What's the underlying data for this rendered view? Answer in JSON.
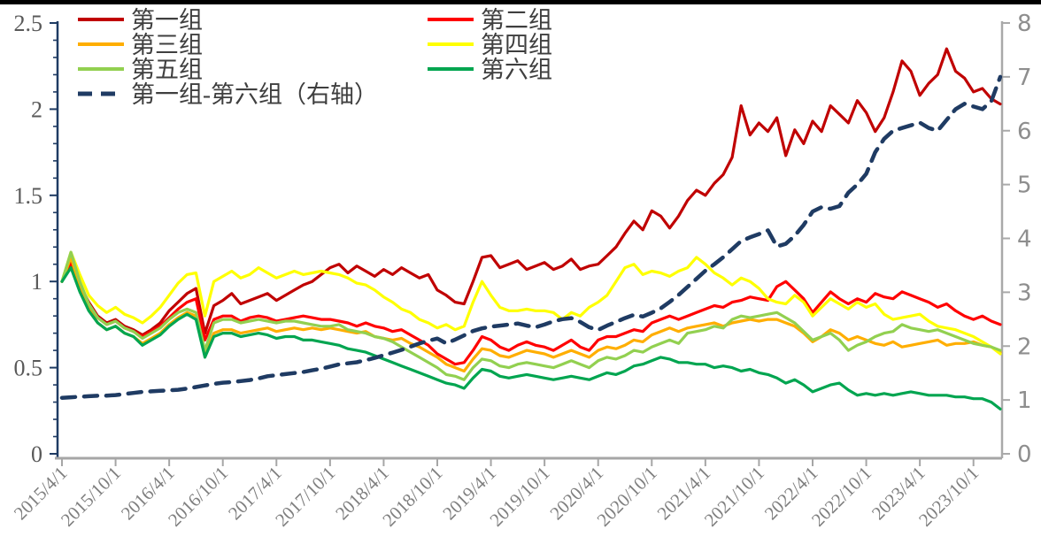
{
  "page": {
    "background": "#ffffff",
    "top_border_color": "#000000"
  },
  "chart_data": {
    "type": "line",
    "title": "",
    "xlabel": "",
    "ylabel_left": "",
    "ylabel_right": "",
    "grid": false,
    "legend_position": "top-left-two-columns",
    "left_axis": {
      "min": 0,
      "max": 2.5,
      "tick_step": 0.5,
      "minor_step": 0.1,
      "labels": [
        "0",
        "0.5",
        "1",
        "1.5",
        "2",
        "2.5"
      ],
      "color": "#1F3B63",
      "label_color": "#595959"
    },
    "right_axis": {
      "min": 0,
      "max": 8,
      "tick_step": 1,
      "labels": [
        "0",
        "1",
        "2",
        "3",
        "4",
        "5",
        "6",
        "7",
        "8"
      ],
      "color": "#A9A9A9",
      "label_color": "#8E8E8E"
    },
    "x_axis": {
      "color": "#A6A6A6",
      "label_color": "#7F7F7F",
      "tick_every_months": 6,
      "tick_labels": [
        "2015/4/1",
        "2015/10/1",
        "2016/4/1",
        "2016/10/1",
        "2017/4/1",
        "2017/10/1",
        "2018/4/1",
        "2018/10/1",
        "2019/4/1",
        "2019/10/1",
        "2020/4/1",
        "2020/10/1",
        "2021/4/1",
        "2021/10/1",
        "2022/4/1",
        "2022/10/1",
        "2023/4/1",
        "2023/10/1"
      ]
    },
    "months": [
      "2015/4",
      "2015/5",
      "2015/6",
      "2015/7",
      "2015/8",
      "2015/9",
      "2015/10",
      "2015/11",
      "2015/12",
      "2016/1",
      "2016/2",
      "2016/3",
      "2016/4",
      "2016/5",
      "2016/6",
      "2016/7",
      "2016/8",
      "2016/9",
      "2016/10",
      "2016/11",
      "2016/12",
      "2017/1",
      "2017/2",
      "2017/3",
      "2017/4",
      "2017/5",
      "2017/6",
      "2017/7",
      "2017/8",
      "2017/9",
      "2017/10",
      "2017/11",
      "2017/12",
      "2018/1",
      "2018/2",
      "2018/3",
      "2018/4",
      "2018/5",
      "2018/6",
      "2018/7",
      "2018/8",
      "2018/9",
      "2018/10",
      "2018/11",
      "2018/12",
      "2019/1",
      "2019/2",
      "2019/3",
      "2019/4",
      "2019/5",
      "2019/6",
      "2019/7",
      "2019/8",
      "2019/9",
      "2019/10",
      "2019/11",
      "2019/12",
      "2020/1",
      "2020/2",
      "2020/3",
      "2020/4",
      "2020/5",
      "2020/6",
      "2020/7",
      "2020/8",
      "2020/9",
      "2020/10",
      "2020/11",
      "2020/12",
      "2021/1",
      "2021/2",
      "2021/3",
      "2021/4",
      "2021/5",
      "2021/6",
      "2021/7",
      "2021/8",
      "2021/9",
      "2021/10",
      "2021/11",
      "2021/12",
      "2022/1",
      "2022/2",
      "2022/3",
      "2022/4",
      "2022/5",
      "2022/6",
      "2022/7",
      "2022/8",
      "2022/9",
      "2022/10",
      "2022/11",
      "2022/12",
      "2023/1",
      "2023/2",
      "2023/3",
      "2023/4",
      "2023/5",
      "2023/6",
      "2023/7",
      "2023/8",
      "2023/9",
      "2023/10",
      "2023/11",
      "2023/12",
      "2024/1"
    ],
    "series": [
      {
        "name": "第一组",
        "color": "#C00000",
        "axis": "left",
        "dash": false,
        "values": [
          1.0,
          1.12,
          0.98,
          0.88,
          0.8,
          0.76,
          0.78,
          0.74,
          0.72,
          0.69,
          0.72,
          0.76,
          0.83,
          0.88,
          0.93,
          0.96,
          0.7,
          0.86,
          0.89,
          0.93,
          0.87,
          0.89,
          0.91,
          0.93,
          0.89,
          0.92,
          0.95,
          0.98,
          1.0,
          1.04,
          1.08,
          1.1,
          1.05,
          1.09,
          1.06,
          1.03,
          1.07,
          1.04,
          1.08,
          1.05,
          1.02,
          1.04,
          0.95,
          0.92,
          0.88,
          0.87,
          1.0,
          1.14,
          1.15,
          1.08,
          1.1,
          1.12,
          1.07,
          1.09,
          1.11,
          1.07,
          1.09,
          1.13,
          1.07,
          1.09,
          1.1,
          1.15,
          1.2,
          1.28,
          1.35,
          1.3,
          1.41,
          1.38,
          1.31,
          1.38,
          1.47,
          1.53,
          1.5,
          1.57,
          1.62,
          1.72,
          2.02,
          1.85,
          1.92,
          1.87,
          1.95,
          1.73,
          1.88,
          1.8,
          1.93,
          1.87,
          2.02,
          1.97,
          1.92,
          2.05,
          1.98,
          1.87,
          1.95,
          2.1,
          2.28,
          2.22,
          2.08,
          2.15,
          2.2,
          2.35,
          2.22,
          2.18,
          2.1,
          2.12,
          2.06,
          2.03
        ]
      },
      {
        "name": "第二组",
        "color": "#FF0000",
        "axis": "left",
        "dash": false,
        "values": [
          1.0,
          1.1,
          0.96,
          0.86,
          0.79,
          0.75,
          0.77,
          0.73,
          0.71,
          0.68,
          0.71,
          0.74,
          0.79,
          0.84,
          0.88,
          0.9,
          0.66,
          0.78,
          0.8,
          0.8,
          0.77,
          0.79,
          0.8,
          0.79,
          0.77,
          0.78,
          0.79,
          0.8,
          0.79,
          0.78,
          0.78,
          0.77,
          0.76,
          0.74,
          0.76,
          0.74,
          0.73,
          0.71,
          0.72,
          0.69,
          0.66,
          0.63,
          0.58,
          0.55,
          0.52,
          0.53,
          0.6,
          0.68,
          0.66,
          0.62,
          0.6,
          0.63,
          0.65,
          0.63,
          0.62,
          0.6,
          0.63,
          0.66,
          0.62,
          0.6,
          0.66,
          0.68,
          0.68,
          0.7,
          0.72,
          0.71,
          0.76,
          0.78,
          0.8,
          0.78,
          0.8,
          0.82,
          0.84,
          0.86,
          0.85,
          0.88,
          0.89,
          0.91,
          0.9,
          0.89,
          0.97,
          1.0,
          0.95,
          0.9,
          0.82,
          0.88,
          0.94,
          0.9,
          0.87,
          0.9,
          0.88,
          0.93,
          0.91,
          0.9,
          0.94,
          0.92,
          0.9,
          0.88,
          0.85,
          0.87,
          0.83,
          0.8,
          0.78,
          0.8,
          0.77,
          0.75
        ]
      },
      {
        "name": "第三组",
        "color": "#FFAE00",
        "axis": "left",
        "dash": false,
        "values": [
          1.0,
          1.14,
          0.97,
          0.84,
          0.76,
          0.72,
          0.74,
          0.7,
          0.68,
          0.64,
          0.67,
          0.7,
          0.75,
          0.79,
          0.82,
          0.8,
          0.57,
          0.7,
          0.72,
          0.72,
          0.7,
          0.71,
          0.72,
          0.73,
          0.71,
          0.72,
          0.73,
          0.72,
          0.73,
          0.72,
          0.73,
          0.72,
          0.71,
          0.7,
          0.71,
          0.68,
          0.67,
          0.66,
          0.67,
          0.64,
          0.62,
          0.59,
          0.56,
          0.52,
          0.5,
          0.48,
          0.55,
          0.61,
          0.6,
          0.57,
          0.56,
          0.58,
          0.6,
          0.59,
          0.58,
          0.56,
          0.58,
          0.6,
          0.58,
          0.56,
          0.6,
          0.62,
          0.61,
          0.63,
          0.66,
          0.65,
          0.69,
          0.71,
          0.73,
          0.71,
          0.73,
          0.74,
          0.75,
          0.76,
          0.74,
          0.76,
          0.77,
          0.78,
          0.77,
          0.78,
          0.78,
          0.76,
          0.74,
          0.7,
          0.65,
          0.68,
          0.72,
          0.7,
          0.66,
          0.68,
          0.66,
          0.64,
          0.63,
          0.65,
          0.62,
          0.63,
          0.64,
          0.65,
          0.66,
          0.63,
          0.64,
          0.64,
          0.65,
          0.63,
          0.62,
          0.59
        ]
      },
      {
        "name": "第四组",
        "color": "#FFFF00",
        "axis": "left",
        "dash": false,
        "values": [
          1.0,
          1.17,
          1.04,
          0.92,
          0.86,
          0.82,
          0.85,
          0.81,
          0.79,
          0.76,
          0.8,
          0.85,
          0.92,
          0.99,
          1.04,
          1.05,
          0.8,
          1.0,
          1.03,
          1.06,
          1.02,
          1.04,
          1.08,
          1.05,
          1.02,
          1.04,
          1.06,
          1.04,
          1.05,
          1.06,
          1.05,
          1.04,
          1.02,
          0.99,
          0.98,
          0.95,
          0.91,
          0.88,
          0.84,
          0.82,
          0.78,
          0.76,
          0.73,
          0.75,
          0.72,
          0.74,
          0.88,
          1.0,
          0.92,
          0.85,
          0.83,
          0.83,
          0.84,
          0.83,
          0.83,
          0.82,
          0.78,
          0.82,
          0.8,
          0.85,
          0.88,
          0.92,
          1.0,
          1.08,
          1.1,
          1.04,
          1.06,
          1.05,
          1.03,
          1.06,
          1.08,
          1.14,
          1.1,
          1.05,
          1.02,
          0.98,
          1.02,
          1.0,
          0.96,
          0.9,
          0.88,
          0.87,
          0.92,
          0.88,
          0.8,
          0.85,
          0.9,
          0.87,
          0.84,
          0.88,
          0.85,
          0.87,
          0.81,
          0.78,
          0.79,
          0.8,
          0.81,
          0.77,
          0.74,
          0.73,
          0.72,
          0.7,
          0.68,
          0.65,
          0.62,
          0.58
        ]
      },
      {
        "name": "第五组",
        "color": "#92D050",
        "axis": "left",
        "dash": false,
        "values": [
          1.0,
          1.17,
          1.0,
          0.87,
          0.79,
          0.75,
          0.77,
          0.73,
          0.71,
          0.67,
          0.7,
          0.73,
          0.78,
          0.82,
          0.84,
          0.82,
          0.6,
          0.76,
          0.78,
          0.78,
          0.76,
          0.77,
          0.78,
          0.77,
          0.76,
          0.77,
          0.77,
          0.76,
          0.75,
          0.74,
          0.74,
          0.75,
          0.72,
          0.71,
          0.7,
          0.68,
          0.67,
          0.65,
          0.62,
          0.59,
          0.56,
          0.53,
          0.5,
          0.46,
          0.45,
          0.43,
          0.5,
          0.55,
          0.54,
          0.51,
          0.5,
          0.52,
          0.53,
          0.52,
          0.51,
          0.5,
          0.52,
          0.54,
          0.52,
          0.5,
          0.54,
          0.56,
          0.55,
          0.57,
          0.6,
          0.59,
          0.62,
          0.64,
          0.66,
          0.64,
          0.7,
          0.71,
          0.72,
          0.74,
          0.73,
          0.78,
          0.8,
          0.79,
          0.8,
          0.81,
          0.82,
          0.79,
          0.76,
          0.71,
          0.66,
          0.68,
          0.7,
          0.66,
          0.6,
          0.63,
          0.65,
          0.68,
          0.7,
          0.71,
          0.75,
          0.73,
          0.72,
          0.71,
          0.72,
          0.7,
          0.68,
          0.66,
          0.64,
          0.63,
          0.62,
          0.6
        ]
      },
      {
        "name": "第六组",
        "color": "#00A550",
        "axis": "left",
        "dash": false,
        "values": [
          1.0,
          1.08,
          0.94,
          0.83,
          0.76,
          0.72,
          0.74,
          0.7,
          0.68,
          0.63,
          0.66,
          0.69,
          0.74,
          0.78,
          0.81,
          0.78,
          0.56,
          0.68,
          0.7,
          0.7,
          0.68,
          0.69,
          0.7,
          0.69,
          0.67,
          0.68,
          0.68,
          0.66,
          0.66,
          0.65,
          0.64,
          0.63,
          0.61,
          0.6,
          0.59,
          0.57,
          0.55,
          0.53,
          0.51,
          0.49,
          0.47,
          0.45,
          0.43,
          0.41,
          0.4,
          0.38,
          0.44,
          0.49,
          0.48,
          0.45,
          0.44,
          0.45,
          0.46,
          0.45,
          0.44,
          0.43,
          0.44,
          0.45,
          0.44,
          0.43,
          0.45,
          0.47,
          0.46,
          0.48,
          0.51,
          0.52,
          0.54,
          0.56,
          0.55,
          0.53,
          0.53,
          0.52,
          0.52,
          0.5,
          0.51,
          0.5,
          0.48,
          0.49,
          0.47,
          0.46,
          0.44,
          0.41,
          0.43,
          0.4,
          0.36,
          0.38,
          0.4,
          0.41,
          0.37,
          0.34,
          0.35,
          0.34,
          0.35,
          0.34,
          0.35,
          0.36,
          0.35,
          0.34,
          0.34,
          0.34,
          0.33,
          0.33,
          0.32,
          0.32,
          0.3,
          0.26
        ]
      },
      {
        "name": "第一组-第六组（右轴）",
        "color": "#1F3B63",
        "axis": "right",
        "dash": true,
        "values": [
          1.04,
          1.05,
          1.06,
          1.07,
          1.08,
          1.08,
          1.09,
          1.11,
          1.13,
          1.15,
          1.16,
          1.17,
          1.18,
          1.19,
          1.21,
          1.24,
          1.27,
          1.3,
          1.32,
          1.33,
          1.35,
          1.37,
          1.4,
          1.44,
          1.46,
          1.48,
          1.5,
          1.52,
          1.55,
          1.58,
          1.62,
          1.66,
          1.68,
          1.7,
          1.74,
          1.78,
          1.83,
          1.88,
          1.93,
          1.99,
          2.05,
          2.1,
          2.14,
          2.05,
          2.12,
          2.2,
          2.28,
          2.33,
          2.36,
          2.38,
          2.4,
          2.42,
          2.38,
          2.35,
          2.4,
          2.46,
          2.5,
          2.52,
          2.45,
          2.35,
          2.3,
          2.38,
          2.45,
          2.52,
          2.58,
          2.55,
          2.62,
          2.7,
          2.82,
          2.95,
          3.1,
          3.25,
          3.4,
          3.52,
          3.65,
          3.8,
          3.95,
          4.02,
          4.08,
          4.15,
          3.85,
          3.9,
          4.05,
          4.25,
          4.5,
          4.58,
          4.55,
          4.6,
          4.85,
          5.0,
          5.2,
          5.6,
          5.85,
          6.0,
          6.05,
          6.1,
          6.15,
          6.05,
          6.0,
          6.2,
          6.4,
          6.5,
          6.45,
          6.4,
          6.55,
          7.0
        ]
      }
    ],
    "legend": {
      "text_color": "#3F3F3F",
      "rows": [
        [
          "第一组",
          "第二组"
        ],
        [
          "第三组",
          "第四组"
        ],
        [
          "第五组",
          "第六组"
        ],
        [
          "第一组-第六组（右轴）"
        ]
      ]
    }
  }
}
